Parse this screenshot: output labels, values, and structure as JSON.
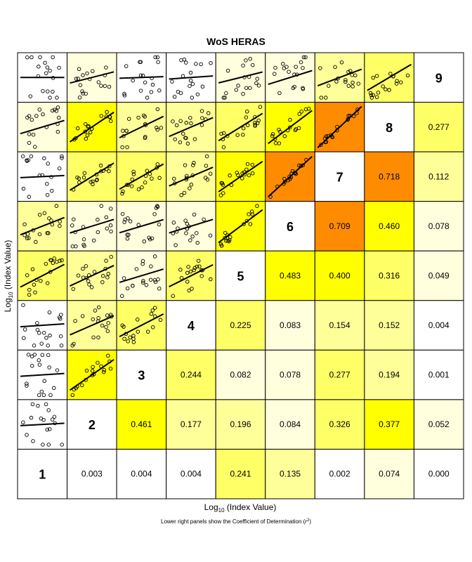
{
  "chart_data": {
    "type": "scatter-matrix",
    "title": "WoS HERAS",
    "xlabel": "Log10 (Index Value)",
    "ylabel": "Log10 (Index Value)",
    "xlabel_main": "Log",
    "xlabel_sub": "10",
    "xlabel_rest": " (Index Value)",
    "ylabel_main": "Log",
    "ylabel_sub": "10",
    "ylabel_rest": " (Index Value)",
    "footnote_main": "Lower right panels show the Coefficient of Determination (",
    "footnote_var": "r",
    "footnote_sup": "2",
    "footnote_end": ")",
    "variables": [
      "1",
      "2",
      "3",
      "4",
      "5",
      "6",
      "7",
      "8",
      "9"
    ],
    "r2_display": {
      "2-1": "0.003",
      "3-1": "0.004",
      "3-2": "0.461",
      "4-1": "0.004",
      "4-2": "0.177",
      "4-3": "0.244",
      "5-1": "0.241",
      "5-2": "0.196",
      "5-3": "0.082",
      "5-4": "0.225",
      "6-1": "0.135",
      "6-2": "0.084",
      "6-3": "0.078",
      "6-4": "0.083",
      "6-5": "0.483",
      "7-1": "0.002",
      "7-2": "0.326",
      "7-3": "0.277",
      "7-4": "0.154",
      "7-5": "0.400",
      "7-6": "0.709",
      "8-1": "0.074",
      "8-2": "0.377",
      "8-3": "0.194",
      "8-4": "0.152",
      "8-5": "0.316",
      "8-6": "0.460",
      "8-7": "0.718",
      "9-1": "0.000",
      "9-2": "0.052",
      "9-3": "0.001",
      "9-4": "0.004",
      "9-5": "0.049",
      "9-6": "0.078",
      "9-7": "0.112",
      "9-8": "0.277"
    },
    "fill_scale": [
      {
        "min_r2": 0.0,
        "color": "#ffffff"
      },
      {
        "min_r2": 0.01,
        "color": "#ffffdd"
      },
      {
        "min_r2": 0.1,
        "color": "#ffff99"
      },
      {
        "min_r2": 0.2,
        "color": "#ffff66"
      },
      {
        "min_r2": 0.35,
        "color": "#ffff00"
      },
      {
        "min_r2": 0.6,
        "color": "#ff8c00"
      }
    ],
    "grid": false
  }
}
